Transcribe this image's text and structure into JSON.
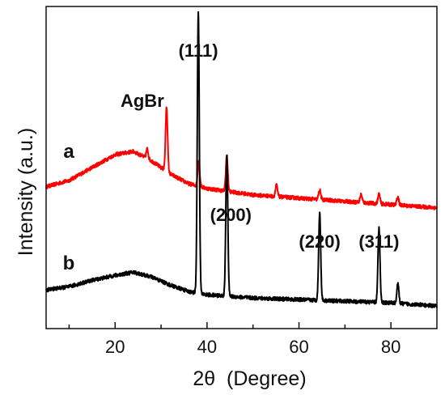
{
  "chart_data": {
    "type": "line",
    "xlabel": "2θ  (Degree)",
    "ylabel": "Intensity (a.u.)",
    "xlim": [
      5,
      90
    ],
    "x_ticks": [
      "20",
      "40",
      "60",
      "80"
    ],
    "y_ticks": "none",
    "grid": false,
    "series": [
      {
        "name": "a",
        "color": "#ff0000",
        "baseline": [
          [
            5,
            0.44
          ],
          [
            10,
            0.46
          ],
          [
            15,
            0.5
          ],
          [
            20,
            0.54
          ],
          [
            24,
            0.55
          ],
          [
            28,
            0.52
          ],
          [
            32,
            0.48
          ],
          [
            36,
            0.45
          ],
          [
            40,
            0.435
          ],
          [
            45,
            0.425
          ],
          [
            50,
            0.415
          ],
          [
            60,
            0.405
          ],
          [
            70,
            0.395
          ],
          [
            80,
            0.385
          ],
          [
            90,
            0.375
          ]
        ],
        "peaks": [
          [
            27.0,
            0.03
          ],
          [
            31.2,
            0.2
          ],
          [
            38.2,
            0.08
          ],
          [
            44.3,
            0.11
          ],
          [
            55.1,
            0.035
          ],
          [
            64.5,
            0.03
          ],
          [
            73.5,
            0.025
          ],
          [
            77.4,
            0.03
          ],
          [
            81.5,
            0.025
          ]
        ]
      },
      {
        "name": "b",
        "color": "#000000",
        "baseline": [
          [
            5,
            0.12
          ],
          [
            10,
            0.13
          ],
          [
            15,
            0.15
          ],
          [
            20,
            0.165
          ],
          [
            24,
            0.175
          ],
          [
            28,
            0.16
          ],
          [
            32,
            0.135
          ],
          [
            36,
            0.115
          ],
          [
            40,
            0.105
          ],
          [
            45,
            0.1
          ],
          [
            50,
            0.095
          ],
          [
            60,
            0.09
          ],
          [
            70,
            0.085
          ],
          [
            80,
            0.08
          ],
          [
            90,
            0.07
          ]
        ],
        "peaks": [
          [
            38.1,
            0.87
          ],
          [
            44.3,
            0.44
          ],
          [
            64.5,
            0.27
          ],
          [
            77.4,
            0.23
          ],
          [
            81.5,
            0.06
          ]
        ]
      }
    ],
    "annotations": [
      {
        "text": "(111)",
        "x": 38.1,
        "series": "b"
      },
      {
        "text": "AgBr",
        "x": 31.2,
        "series": "a"
      },
      {
        "text": "(200)",
        "x": 44.3,
        "series": "b"
      },
      {
        "text": "(220)",
        "x": 64.5,
        "series": "b"
      },
      {
        "text": "(311)",
        "x": 77.4,
        "series": "b"
      }
    ]
  }
}
